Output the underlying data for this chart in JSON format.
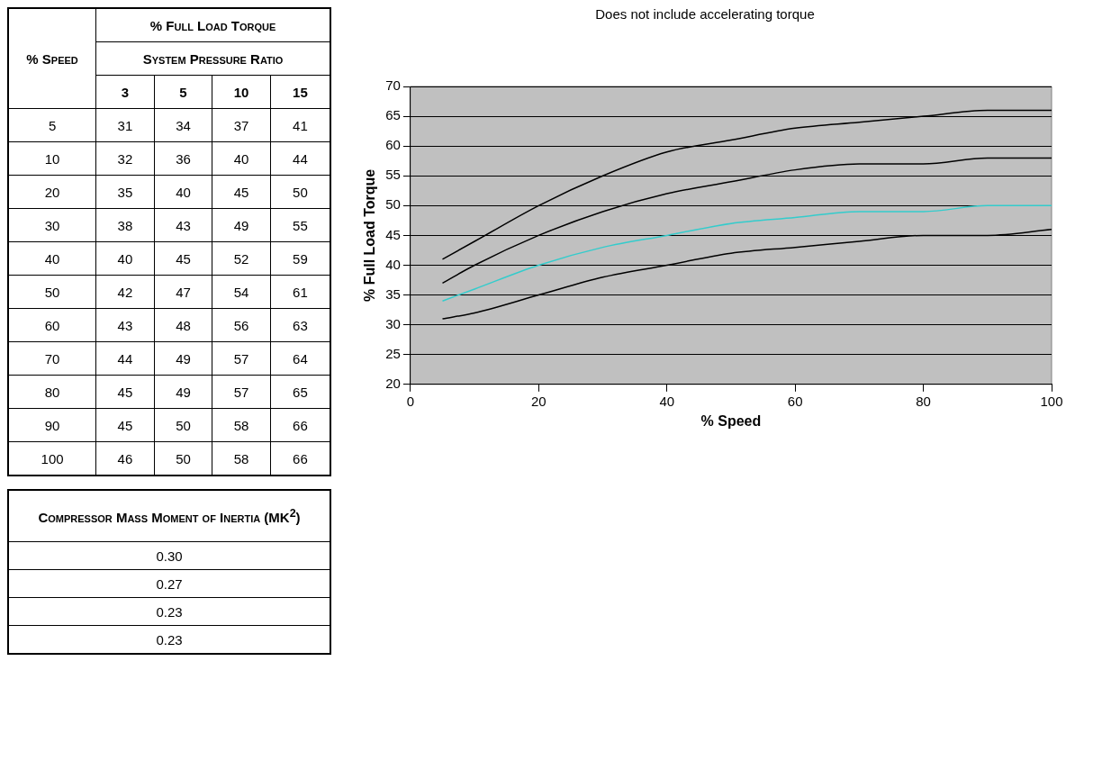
{
  "chart_data": [
    {
      "type": "heatmap",
      "title": "% Full Load Torque",
      "xlabel": "System Pressure Ratio",
      "ylabel": "% Speed",
      "categories": [
        "3",
        "5",
        "10",
        "15"
      ],
      "y_categories": [
        "5",
        "10",
        "20",
        "30",
        "40",
        "50",
        "60",
        "70",
        "80",
        "90",
        "100"
      ],
      "data_labels": true,
      "cells": [
        [
          31,
          34,
          37,
          41
        ],
        [
          32,
          36,
          40,
          44
        ],
        [
          35,
          40,
          45,
          50
        ],
        [
          38,
          43,
          49,
          55
        ],
        [
          40,
          45,
          52,
          59
        ],
        [
          42,
          47,
          54,
          61
        ],
        [
          43,
          48,
          56,
          63
        ],
        [
          44,
          49,
          57,
          64
        ],
        [
          45,
          49,
          57,
          65
        ],
        [
          45,
          50,
          58,
          66
        ],
        [
          46,
          50,
          58,
          66
        ]
      ]
    },
    {
      "type": "other",
      "title": "Compressor Mass Moment of Inertia (MK$^{2}$)",
      "annotations": [
        "0.30",
        "0.27",
        "0.23",
        "0.23"
      ]
    },
    {
      "type": "line",
      "title": "Does not include accelerating torque",
      "xlabel": "% Speed",
      "ylabel": "% Full Load Torque",
      "x": [
        5,
        10,
        20,
        30,
        40,
        50,
        60,
        70,
        80,
        90,
        100
      ],
      "series": [
        {
          "color": "#000000",
          "values": [
            31,
            32,
            35,
            38,
            40,
            42,
            43,
            44,
            45,
            45,
            46
          ]
        },
        {
          "color": "#33cccc",
          "values": [
            34,
            36,
            40,
            43,
            45,
            47,
            48,
            49,
            49,
            50,
            50
          ]
        },
        {
          "color": "#000000",
          "values": [
            37,
            40,
            45,
            49,
            52,
            54,
            56,
            57,
            57,
            58,
            58
          ]
        },
        {
          "color": "#000000",
          "values": [
            41,
            44,
            50,
            55,
            59,
            61,
            63,
            64,
            65,
            66,
            66
          ]
        }
      ],
      "xlim": [
        0,
        100
      ],
      "xticks": [
        0,
        20,
        40,
        60,
        80,
        100
      ],
      "ylim": [
        20,
        70
      ],
      "yticks": [
        20,
        25,
        30,
        35,
        40,
        45,
        50,
        55,
        60,
        65,
        70
      ],
      "grid": "y",
      "marker": "none",
      "line_style": "solid"
    }
  ]
}
